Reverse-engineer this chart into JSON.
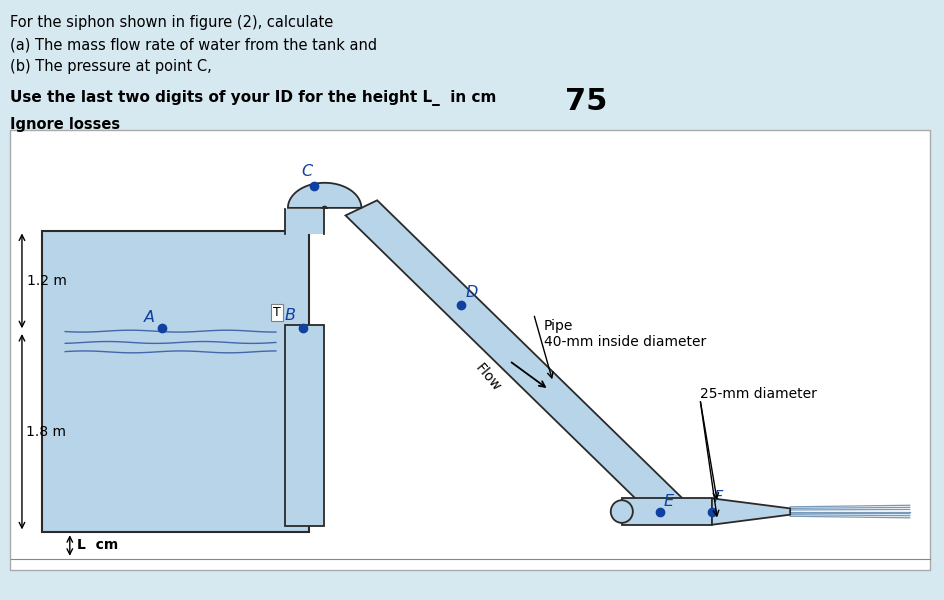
{
  "bg_color": "#d6e8f0",
  "diagram_bg": "#ffffff",
  "title_lines": [
    "For the siphon shown in figure (2), calculate",
    "(a) The mass flow rate of water from the tank and",
    "(b) The pressure at point C,"
  ],
  "bold_line": "Use the last two digits of your ID for the height L_  in cm",
  "bold_value": "75",
  "ignore_line": "Ignore losses",
  "water_color": "#b8d4e8",
  "pipe_color": "#b8d4e8",
  "pipe_border": "#2a2a2a",
  "tank_color": "#b8d4e8",
  "point_color": "#1040a0",
  "label_color": "#1040a0",
  "label_12m": "1.2 m",
  "label_18m": "1.8 m",
  "label_Lcm": "L  cm",
  "label_pipe": "Pipe\n40-mm inside diameter",
  "label_25mm": "25-mm diameter",
  "label_flow": "Flow",
  "point_size": 6
}
